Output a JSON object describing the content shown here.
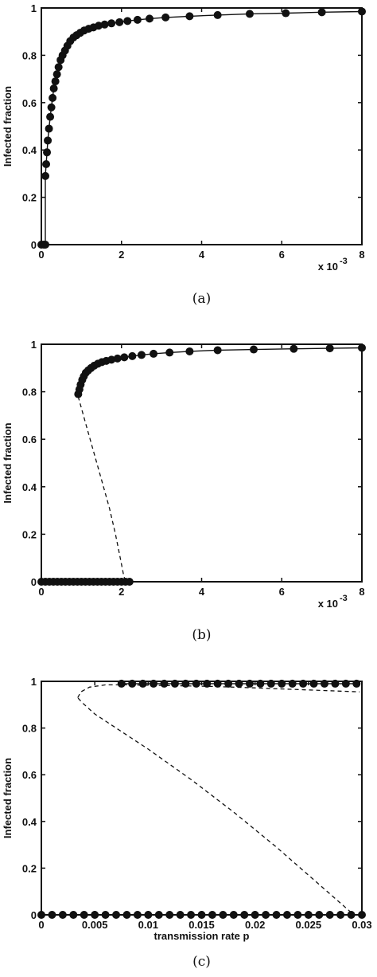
{
  "chart_data": [
    {
      "type": "line",
      "caption": "(a)",
      "ylabel": "Infected fraction",
      "xlabel": "",
      "x_multiplier_label": "x 10",
      "x_multiplier_exponent": "-3",
      "xlim": [
        0,
        8
      ],
      "ylim": [
        0,
        1
      ],
      "xticks": [
        "0",
        "2",
        "4",
        "6",
        "8"
      ],
      "yticks": [
        "0",
        "0.2",
        "0.4",
        "0.6",
        "0.8",
        "1"
      ],
      "series": [
        {
          "style": "solid-markers",
          "x": [
            0,
            0.06,
            0.1,
            0.1,
            0.12,
            0.14,
            0.16,
            0.19,
            0.22,
            0.25,
            0.28,
            0.31,
            0.35,
            0.39,
            0.43,
            0.48,
            0.53,
            0.59,
            0.65,
            0.72,
            0.8,
            0.88,
            0.97,
            1.07,
            1.18,
            1.3,
            1.43,
            1.58,
            1.75,
            1.95,
            2.15,
            2.4,
            2.7,
            3.1,
            3.7,
            4.4,
            5.2,
            6.1,
            7.0,
            8.0
          ],
          "y": [
            0,
            0,
            0.0,
            0.29,
            0.34,
            0.39,
            0.44,
            0.49,
            0.54,
            0.58,
            0.62,
            0.66,
            0.69,
            0.72,
            0.75,
            0.78,
            0.8,
            0.82,
            0.84,
            0.86,
            0.875,
            0.885,
            0.895,
            0.905,
            0.912,
            0.918,
            0.925,
            0.93,
            0.935,
            0.94,
            0.945,
            0.95,
            0.955,
            0.96,
            0.965,
            0.97,
            0.975,
            0.978,
            0.982,
            0.985
          ]
        }
      ]
    },
    {
      "type": "line",
      "caption": "(b)",
      "ylabel": "Infected fraction",
      "xlabel": "",
      "x_multiplier_label": "x 10",
      "x_multiplier_exponent": "-3",
      "xlim": [
        0,
        8
      ],
      "ylim": [
        0,
        1
      ],
      "xticks": [
        "0",
        "2",
        "4",
        "6",
        "8"
      ],
      "yticks": [
        "0",
        "0.2",
        "0.4",
        "0.6",
        "0.8",
        "1"
      ],
      "series": [
        {
          "style": "solid-markers",
          "x": [
            0.0,
            0.1,
            0.2,
            0.3,
            0.4,
            0.5,
            0.6,
            0.7,
            0.8,
            0.9,
            1.0,
            1.1,
            1.2,
            1.3,
            1.4,
            1.5,
            1.6,
            1.7,
            1.8,
            1.9,
            2.0,
            2.1,
            2.2
          ],
          "y": [
            0,
            0,
            0,
            0,
            0,
            0,
            0,
            0,
            0,
            0,
            0,
            0,
            0,
            0,
            0,
            0,
            0,
            0,
            0,
            0,
            0,
            0,
            0
          ]
        },
        {
          "style": "solid-markers",
          "x": [
            0.92,
            0.95,
            0.98,
            1.02,
            1.06,
            1.11,
            1.17,
            1.24,
            1.32,
            1.41,
            1.51,
            1.62,
            1.75,
            1.9,
            2.07,
            2.27,
            2.5,
            2.8,
            3.2,
            3.7,
            4.4,
            5.3,
            6.3,
            7.2,
            8.0
          ],
          "y": [
            0.79,
            0.81,
            0.83,
            0.85,
            0.865,
            0.88,
            0.89,
            0.9,
            0.91,
            0.918,
            0.925,
            0.93,
            0.935,
            0.94,
            0.945,
            0.95,
            0.955,
            0.96,
            0.965,
            0.97,
            0.975,
            0.978,
            0.981,
            0.983,
            0.985
          ]
        },
        {
          "style": "dashed",
          "x": [
            0.92,
            1.1,
            1.3,
            1.5,
            1.7,
            1.85,
            1.97,
            2.05,
            2.1
          ],
          "y": [
            0.78,
            0.67,
            0.55,
            0.43,
            0.31,
            0.2,
            0.1,
            0.03,
            0.0
          ]
        }
      ]
    },
    {
      "type": "line",
      "caption": "(c)",
      "ylabel": "Infected fraction",
      "xlabel": "transmission rate p",
      "x_multiplier_label": "",
      "x_multiplier_exponent": "",
      "xlim": [
        0,
        0.03
      ],
      "ylim": [
        0,
        1
      ],
      "xticks": [
        "0",
        "0.005",
        "0.01",
        "0.015",
        "0.02",
        "0.025",
        "0.03"
      ],
      "yticks": [
        "0",
        "0.2",
        "0.4",
        "0.6",
        "0.8",
        "1"
      ],
      "series": [
        {
          "style": "solid-markers",
          "x": [
            0.0,
            0.001,
            0.002,
            0.003,
            0.004,
            0.005,
            0.006,
            0.007,
            0.008,
            0.009,
            0.01,
            0.011,
            0.012,
            0.013,
            0.014,
            0.015,
            0.016,
            0.017,
            0.018,
            0.019,
            0.02,
            0.021,
            0.022,
            0.023,
            0.024,
            0.025,
            0.026,
            0.027,
            0.028,
            0.029,
            0.03
          ],
          "y": [
            0,
            0,
            0,
            0,
            0,
            0,
            0,
            0,
            0,
            0,
            0,
            0,
            0,
            0,
            0,
            0,
            0,
            0,
            0,
            0,
            0,
            0,
            0,
            0,
            0,
            0,
            0,
            0,
            0,
            0,
            0
          ]
        },
        {
          "style": "solid-markers",
          "x": [
            0.0075,
            0.0085,
            0.0095,
            0.0105,
            0.0115,
            0.0125,
            0.0135,
            0.0145,
            0.0155,
            0.0165,
            0.0175,
            0.0185,
            0.0195,
            0.0205,
            0.0215,
            0.0225,
            0.0235,
            0.0245,
            0.0255,
            0.0265,
            0.0275,
            0.0285,
            0.0295
          ],
          "y": [
            0.99,
            0.99,
            0.99,
            0.99,
            0.99,
            0.99,
            0.99,
            0.99,
            0.99,
            0.99,
            0.99,
            0.99,
            0.99,
            0.99,
            0.99,
            0.99,
            0.99,
            0.99,
            0.99,
            0.99,
            0.99,
            0.99,
            0.99
          ]
        },
        {
          "style": "dashed",
          "x": [
            0.029,
            0.026,
            0.022,
            0.018,
            0.014,
            0.01,
            0.007,
            0.005,
            0.0038,
            0.0034
          ],
          "y": [
            0.01,
            0.13,
            0.29,
            0.44,
            0.58,
            0.71,
            0.8,
            0.86,
            0.91,
            0.93
          ]
        },
        {
          "style": "dashed",
          "x": [
            0.0034,
            0.0037,
            0.0045,
            0.006,
            0.008,
            0.012,
            0.016,
            0.02,
            0.024,
            0.028,
            0.0298
          ],
          "y": [
            0.93,
            0.955,
            0.975,
            0.985,
            0.985,
            0.982,
            0.978,
            0.972,
            0.965,
            0.958,
            0.955
          ]
        }
      ]
    }
  ]
}
